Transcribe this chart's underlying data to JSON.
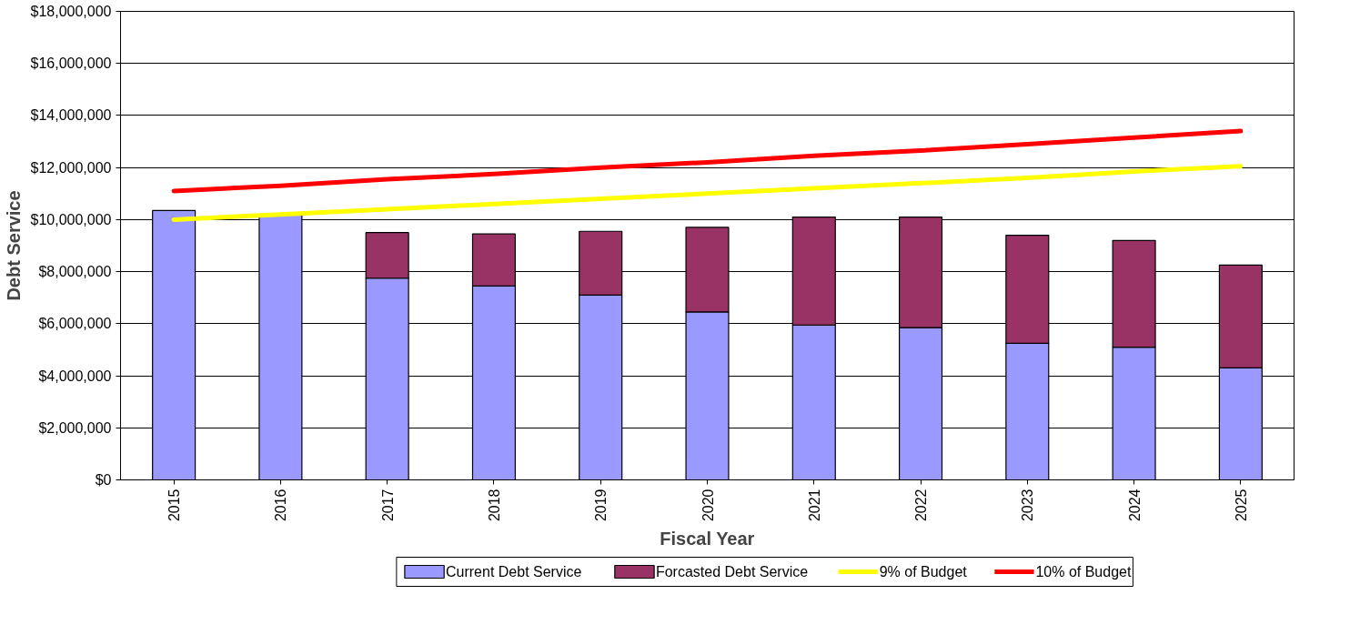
{
  "chart_data": {
    "type": "bar",
    "stacked": true,
    "xlabel": "Fiscal Year",
    "ylabel": "Debt Service",
    "categories": [
      "2015",
      "2016",
      "2017",
      "2018",
      "2019",
      "2020",
      "2021",
      "2022",
      "2023",
      "2024",
      "2025"
    ],
    "series": [
      {
        "name": "Current Debt Service",
        "color": "#9999ff",
        "values": [
          10350000,
          10200000,
          7750000,
          7450000,
          7100000,
          6450000,
          5950000,
          5850000,
          5250000,
          5100000,
          4300000
        ]
      },
      {
        "name": "Forcasted Debt Service",
        "color": "#993366",
        "values": [
          null,
          null,
          1750000,
          2000000,
          2450000,
          3250000,
          4150000,
          4250000,
          4150000,
          4100000,
          3950000
        ]
      },
      {
        "name": "9% of Budget",
        "type": "line",
        "color": "#ffff00",
        "values": [
          10000000,
          10200000,
          10400000,
          10600000,
          10800000,
          11000000,
          11200000,
          11400000,
          11600000,
          11850000,
          12050000
        ]
      },
      {
        "name": "10% of Budget",
        "type": "line",
        "color": "#ff0000",
        "values": [
          11100000,
          11300000,
          11550000,
          11750000,
          12000000,
          12200000,
          12450000,
          12650000,
          12900000,
          13150000,
          13400000
        ]
      }
    ],
    "ylim": [
      0,
      18000000
    ],
    "yticks": [
      {
        "value": 0,
        "label": "$0"
      },
      {
        "value": 2000000,
        "label": "$2,000,000"
      },
      {
        "value": 4000000,
        "label": "$4,000,000"
      },
      {
        "value": 6000000,
        "label": "$6,000,000"
      },
      {
        "value": 8000000,
        "label": "$8,000,000"
      },
      {
        "value": 10000000,
        "label": "$10,000,000"
      },
      {
        "value": 12000000,
        "label": "$12,000,000"
      },
      {
        "value": 14000000,
        "label": "$14,000,000"
      },
      {
        "value": 16000000,
        "label": "$16,000,000"
      },
      {
        "value": 18000000,
        "label": "$18,000,000"
      }
    ],
    "grid": "y",
    "legend": "bottom"
  }
}
